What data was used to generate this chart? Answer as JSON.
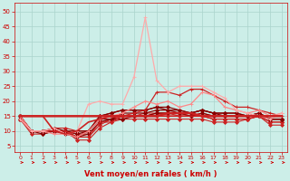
{
  "xlabel": "Vent moyen/en rafales ( km/h )",
  "background_color": "#cceee8",
  "grid_color": "#aad4cc",
  "text_color": "#cc0000",
  "ylim": [
    3,
    53
  ],
  "xlim": [
    -0.5,
    23.5
  ],
  "yticks": [
    5,
    10,
    15,
    20,
    25,
    30,
    35,
    40,
    45,
    50
  ],
  "xticks": [
    0,
    1,
    2,
    3,
    4,
    5,
    6,
    7,
    8,
    9,
    10,
    11,
    12,
    13,
    14,
    15,
    16,
    17,
    18,
    19,
    20,
    21,
    22,
    23
  ],
  "lines": [
    {
      "x": [
        0,
        1,
        2,
        3,
        4,
        5,
        6,
        7,
        8,
        9,
        10,
        11,
        12,
        13,
        14,
        15,
        16,
        17,
        18,
        19,
        20,
        21,
        22,
        23
      ],
      "y": [
        14,
        9,
        9,
        10,
        10,
        7,
        7,
        11,
        13,
        14,
        14,
        14,
        14,
        14,
        14,
        14,
        14,
        13,
        13,
        13,
        14,
        15,
        12,
        12
      ],
      "color": "#cc2222",
      "lw": 0.8,
      "marker": "D",
      "ms": 2.0
    },
    {
      "x": [
        0,
        1,
        2,
        3,
        4,
        5,
        6,
        7,
        8,
        9,
        10,
        11,
        12,
        13,
        14,
        15,
        16,
        17,
        18,
        19,
        20,
        21,
        22,
        23
      ],
      "y": [
        14,
        10,
        10,
        10,
        10,
        8,
        8,
        12,
        14,
        15,
        15,
        16,
        16,
        16,
        16,
        15,
        15,
        14,
        14,
        14,
        14,
        15,
        13,
        13
      ],
      "color": "#cc2222",
      "lw": 0.8,
      "marker": "D",
      "ms": 2.0
    },
    {
      "x": [
        0,
        1,
        2,
        3,
        4,
        5,
        6,
        7,
        8,
        9,
        10,
        11,
        12,
        13,
        14,
        15,
        16,
        17,
        18,
        19,
        20,
        21,
        22,
        23
      ],
      "y": [
        14,
        10,
        10,
        10,
        10,
        9,
        9,
        13,
        14,
        15,
        15,
        15,
        15,
        15,
        15,
        15,
        15,
        14,
        14,
        14,
        14,
        15,
        13,
        13
      ],
      "color": "#cc2222",
      "lw": 0.8,
      "marker": "D",
      "ms": 2.0
    },
    {
      "x": [
        0,
        1,
        2,
        3,
        4,
        5,
        6,
        7,
        8,
        9,
        10,
        11,
        12,
        13,
        14,
        15,
        16,
        17,
        18,
        19,
        20,
        21,
        22,
        23
      ],
      "y": [
        15,
        10,
        10,
        11,
        11,
        10,
        10,
        14,
        15,
        15,
        15,
        15,
        16,
        16,
        15,
        15,
        16,
        15,
        15,
        15,
        15,
        16,
        14,
        14
      ],
      "color": "#cc2222",
      "lw": 0.8,
      "marker": "D",
      "ms": 2.0
    },
    {
      "x": [
        0,
        1,
        2,
        3,
        4,
        5,
        6,
        7,
        8,
        9,
        10,
        11,
        12,
        13,
        14,
        15,
        16,
        17,
        18,
        19,
        20,
        21,
        22,
        23
      ],
      "y": [
        15,
        10,
        10,
        11,
        10,
        10,
        10,
        14,
        14,
        16,
        16,
        16,
        17,
        17,
        16,
        15,
        16,
        15,
        15,
        15,
        15,
        16,
        14,
        14
      ],
      "color": "#880000",
      "lw": 0.9,
      "marker": "D",
      "ms": 2.0
    },
    {
      "x": [
        0,
        1,
        2,
        3,
        4,
        5,
        6,
        7,
        8,
        9,
        10,
        11,
        12,
        13,
        14,
        15,
        16,
        17,
        18,
        19,
        20,
        21,
        22,
        23
      ],
      "y": [
        14,
        10,
        9,
        10,
        9,
        8,
        9,
        13,
        14,
        14,
        15,
        15,
        16,
        16,
        16,
        16,
        17,
        16,
        15,
        15,
        15,
        15,
        14,
        14
      ],
      "color": "#880000",
      "lw": 0.9,
      "marker": "D",
      "ms": 2.0
    },
    {
      "x": [
        0,
        1,
        2,
        3,
        4,
        5,
        6,
        7,
        8,
        9,
        10,
        11,
        12,
        13,
        14,
        15,
        16,
        17,
        18,
        19,
        20,
        21,
        22,
        23
      ],
      "y": [
        15,
        10,
        10,
        10,
        10,
        8,
        10,
        15,
        16,
        17,
        17,
        17,
        18,
        17,
        17,
        16,
        17,
        16,
        16,
        16,
        15,
        16,
        14,
        14
      ],
      "color": "#880000",
      "lw": 0.9,
      "marker": "D",
      "ms": 2.0
    },
    {
      "x": [
        0,
        1,
        2,
        3,
        4,
        5,
        6,
        7,
        8,
        9,
        10,
        11,
        12,
        13,
        14,
        15,
        16,
        17,
        18,
        19,
        20,
        21,
        22,
        23
      ],
      "y": [
        15,
        10,
        10,
        10,
        10,
        9,
        10,
        15,
        16,
        17,
        17,
        17,
        18,
        18,
        17,
        16,
        17,
        16,
        16,
        16,
        15,
        15,
        14,
        14
      ],
      "color": "#880000",
      "lw": 0.9,
      "marker": "D",
      "ms": 2.0
    },
    {
      "x": [
        0,
        1,
        2,
        3,
        4,
        5,
        6,
        7,
        8,
        9,
        10,
        11,
        12,
        13,
        14,
        15,
        16,
        17,
        18,
        19,
        20,
        21,
        22,
        23
      ],
      "y": [
        14,
        10,
        10,
        10,
        10,
        8,
        8,
        13,
        13,
        15,
        16,
        17,
        23,
        23,
        22,
        24,
        24,
        22,
        20,
        18,
        18,
        17,
        16,
        15
      ],
      "color": "#cc2222",
      "lw": 0.9,
      "marker": "+",
      "ms": 3.5
    },
    {
      "x": [
        0,
        1,
        2,
        3,
        4,
        5,
        6,
        7,
        8,
        9,
        10,
        11,
        12,
        13,
        14,
        15,
        16,
        17,
        18,
        19,
        20,
        21,
        22,
        23
      ],
      "y": [
        15,
        10,
        10,
        9,
        9,
        8,
        10,
        14,
        15,
        16,
        18,
        20,
        19,
        20,
        18,
        19,
        23,
        22,
        18,
        17,
        16,
        17,
        15,
        16
      ],
      "color": "#ff8888",
      "lw": 0.9,
      "marker": "+",
      "ms": 3.5
    },
    {
      "x": [
        0,
        1,
        2,
        3,
        4,
        5,
        6,
        7,
        8,
        9,
        10,
        11,
        12,
        13,
        14,
        15,
        16,
        17,
        18,
        19,
        20,
        21,
        22,
        23
      ],
      "y": [
        14,
        10,
        10,
        11,
        9,
        10,
        19,
        20,
        19,
        19,
        28,
        48,
        27,
        23,
        25,
        25,
        25,
        23,
        21,
        17,
        16,
        15,
        14,
        16
      ],
      "color": "#ffaaaa",
      "lw": 0.9,
      "marker": "+",
      "ms": 3.5
    },
    {
      "x": [
        0,
        1,
        2,
        3,
        4,
        5,
        6,
        7,
        8,
        9,
        10,
        11,
        12,
        13,
        14,
        15,
        16,
        17,
        18,
        19,
        20,
        21,
        22,
        23
      ],
      "y": [
        15,
        15,
        15,
        10,
        9,
        10,
        13,
        14,
        15,
        15,
        15,
        15,
        15,
        15,
        15,
        15,
        15,
        15,
        15,
        15,
        15,
        15,
        15,
        15
      ],
      "color": "#cc2222",
      "lw": 1.2,
      "marker": null,
      "ms": 0
    },
    {
      "x": [
        0,
        1,
        2,
        3,
        4,
        5,
        6,
        7,
        8,
        9,
        10,
        11,
        12,
        13,
        14,
        15,
        16,
        17,
        18,
        19,
        20,
        21,
        22,
        23
      ],
      "y": [
        15,
        15,
        15,
        15,
        15,
        15,
        15,
        15,
        15,
        15,
        15,
        15,
        15,
        16,
        16,
        16,
        15,
        15,
        15,
        15,
        15,
        15,
        15,
        15
      ],
      "color": "#cc2222",
      "lw": 1.8,
      "marker": null,
      "ms": 0
    }
  ],
  "arrow_color": "#cc0000"
}
